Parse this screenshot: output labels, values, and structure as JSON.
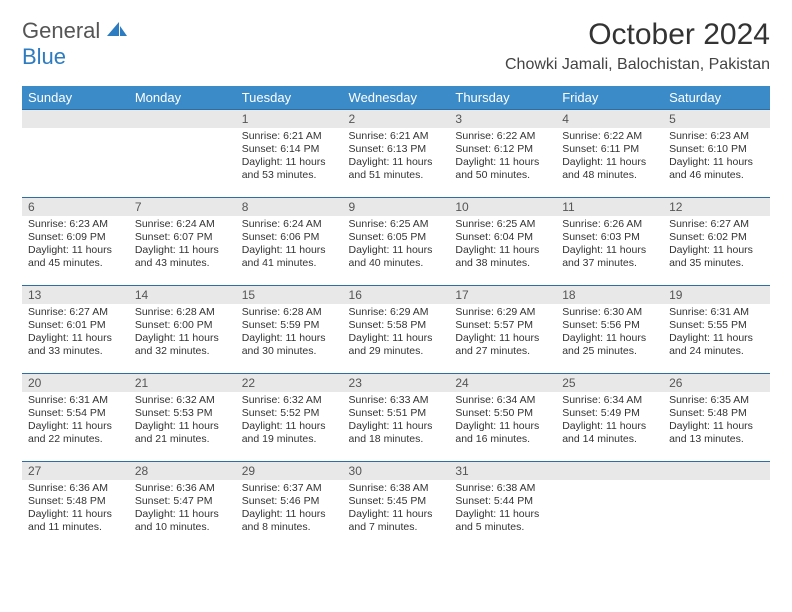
{
  "logo": {
    "text1": "General",
    "text2": "Blue"
  },
  "title": "October 2024",
  "location": "Chowki Jamali, Balochistan, Pakistan",
  "colors": {
    "header_bg": "#3b8bc9",
    "header_text": "#ffffff",
    "daynum_bg": "#e8e8e8",
    "border": "#2d6fa5",
    "logo_accent": "#2d7bc0"
  },
  "fonts": {
    "title_size": 30,
    "location_size": 16,
    "weekday_size": 13,
    "daynum_size": 12,
    "body_size": 10.5
  },
  "weekdays": [
    "Sunday",
    "Monday",
    "Tuesday",
    "Wednesday",
    "Thursday",
    "Friday",
    "Saturday"
  ],
  "first_weekday_index": 2,
  "days": [
    {
      "n": 1,
      "sunrise": "6:21 AM",
      "sunset": "6:14 PM",
      "daylight": "11 hours and 53 minutes."
    },
    {
      "n": 2,
      "sunrise": "6:21 AM",
      "sunset": "6:13 PM",
      "daylight": "11 hours and 51 minutes."
    },
    {
      "n": 3,
      "sunrise": "6:22 AM",
      "sunset": "6:12 PM",
      "daylight": "11 hours and 50 minutes."
    },
    {
      "n": 4,
      "sunrise": "6:22 AM",
      "sunset": "6:11 PM",
      "daylight": "11 hours and 48 minutes."
    },
    {
      "n": 5,
      "sunrise": "6:23 AM",
      "sunset": "6:10 PM",
      "daylight": "11 hours and 46 minutes."
    },
    {
      "n": 6,
      "sunrise": "6:23 AM",
      "sunset": "6:09 PM",
      "daylight": "11 hours and 45 minutes."
    },
    {
      "n": 7,
      "sunrise": "6:24 AM",
      "sunset": "6:07 PM",
      "daylight": "11 hours and 43 minutes."
    },
    {
      "n": 8,
      "sunrise": "6:24 AM",
      "sunset": "6:06 PM",
      "daylight": "11 hours and 41 minutes."
    },
    {
      "n": 9,
      "sunrise": "6:25 AM",
      "sunset": "6:05 PM",
      "daylight": "11 hours and 40 minutes."
    },
    {
      "n": 10,
      "sunrise": "6:25 AM",
      "sunset": "6:04 PM",
      "daylight": "11 hours and 38 minutes."
    },
    {
      "n": 11,
      "sunrise": "6:26 AM",
      "sunset": "6:03 PM",
      "daylight": "11 hours and 37 minutes."
    },
    {
      "n": 12,
      "sunrise": "6:27 AM",
      "sunset": "6:02 PM",
      "daylight": "11 hours and 35 minutes."
    },
    {
      "n": 13,
      "sunrise": "6:27 AM",
      "sunset": "6:01 PM",
      "daylight": "11 hours and 33 minutes."
    },
    {
      "n": 14,
      "sunrise": "6:28 AM",
      "sunset": "6:00 PM",
      "daylight": "11 hours and 32 minutes."
    },
    {
      "n": 15,
      "sunrise": "6:28 AM",
      "sunset": "5:59 PM",
      "daylight": "11 hours and 30 minutes."
    },
    {
      "n": 16,
      "sunrise": "6:29 AM",
      "sunset": "5:58 PM",
      "daylight": "11 hours and 29 minutes."
    },
    {
      "n": 17,
      "sunrise": "6:29 AM",
      "sunset": "5:57 PM",
      "daylight": "11 hours and 27 minutes."
    },
    {
      "n": 18,
      "sunrise": "6:30 AM",
      "sunset": "5:56 PM",
      "daylight": "11 hours and 25 minutes."
    },
    {
      "n": 19,
      "sunrise": "6:31 AM",
      "sunset": "5:55 PM",
      "daylight": "11 hours and 24 minutes."
    },
    {
      "n": 20,
      "sunrise": "6:31 AM",
      "sunset": "5:54 PM",
      "daylight": "11 hours and 22 minutes."
    },
    {
      "n": 21,
      "sunrise": "6:32 AM",
      "sunset": "5:53 PM",
      "daylight": "11 hours and 21 minutes."
    },
    {
      "n": 22,
      "sunrise": "6:32 AM",
      "sunset": "5:52 PM",
      "daylight": "11 hours and 19 minutes."
    },
    {
      "n": 23,
      "sunrise": "6:33 AM",
      "sunset": "5:51 PM",
      "daylight": "11 hours and 18 minutes."
    },
    {
      "n": 24,
      "sunrise": "6:34 AM",
      "sunset": "5:50 PM",
      "daylight": "11 hours and 16 minutes."
    },
    {
      "n": 25,
      "sunrise": "6:34 AM",
      "sunset": "5:49 PM",
      "daylight": "11 hours and 14 minutes."
    },
    {
      "n": 26,
      "sunrise": "6:35 AM",
      "sunset": "5:48 PM",
      "daylight": "11 hours and 13 minutes."
    },
    {
      "n": 27,
      "sunrise": "6:36 AM",
      "sunset": "5:48 PM",
      "daylight": "11 hours and 11 minutes."
    },
    {
      "n": 28,
      "sunrise": "6:36 AM",
      "sunset": "5:47 PM",
      "daylight": "11 hours and 10 minutes."
    },
    {
      "n": 29,
      "sunrise": "6:37 AM",
      "sunset": "5:46 PM",
      "daylight": "11 hours and 8 minutes."
    },
    {
      "n": 30,
      "sunrise": "6:38 AM",
      "sunset": "5:45 PM",
      "daylight": "11 hours and 7 minutes."
    },
    {
      "n": 31,
      "sunrise": "6:38 AM",
      "sunset": "5:44 PM",
      "daylight": "11 hours and 5 minutes."
    }
  ],
  "labels": {
    "sunrise": "Sunrise:",
    "sunset": "Sunset:",
    "daylight": "Daylight:"
  }
}
